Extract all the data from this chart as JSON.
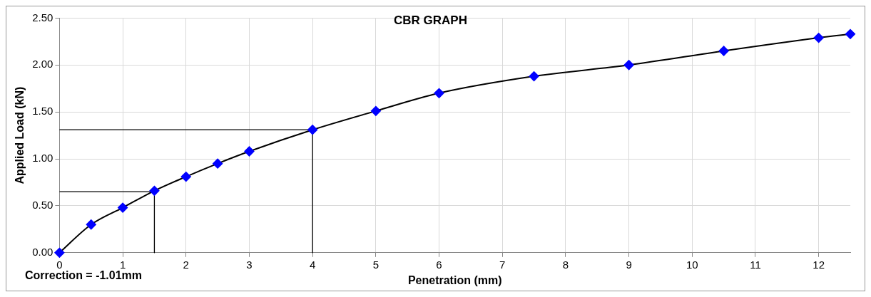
{
  "chart_data": {
    "type": "line",
    "title": "CBR GRAPH",
    "xlabel": "Penetration (mm)",
    "ylabel": "Applied Load (kN)",
    "annotations": [
      "Correction = -1.01mm"
    ],
    "xlim": [
      0,
      12.5
    ],
    "xticks": [
      0,
      1,
      2,
      3,
      4,
      5,
      6,
      7,
      8,
      9,
      10,
      11,
      12
    ],
    "ylim": [
      0,
      2.5
    ],
    "yticks": [
      {
        "value": 0,
        "label": "0.00"
      },
      {
        "value": 0.5,
        "label": "0.50"
      },
      {
        "value": 1,
        "label": "1.00"
      },
      {
        "value": 1.5,
        "label": "1.50"
      },
      {
        "value": 2,
        "label": "2.00"
      },
      {
        "value": 2.5,
        "label": "2.50"
      }
    ],
    "grid": true,
    "legend": false,
    "series": [
      {
        "color": "#0000ff",
        "marker": "diamond",
        "x": [
          0,
          0.5,
          1,
          1.5,
          2,
          2.5,
          3,
          4,
          5,
          6,
          7.5,
          9,
          10.5,
          12,
          12.5
        ],
        "values": [
          0,
          0.3,
          0.48,
          0.66,
          0.81,
          0.95,
          1.08,
          1.31,
          1.51,
          1.7,
          1.88,
          2.0,
          2.15,
          2.29,
          2.33
        ]
      },
      {
        "color": "#000000",
        "marker": "none",
        "x": [
          0,
          1.5,
          1.5
        ],
        "values": [
          0.65,
          0.65,
          0
        ]
      },
      {
        "color": "#000000",
        "marker": "none",
        "x": [
          0,
          4,
          4
        ],
        "values": [
          1.31,
          1.31,
          0
        ]
      }
    ]
  }
}
